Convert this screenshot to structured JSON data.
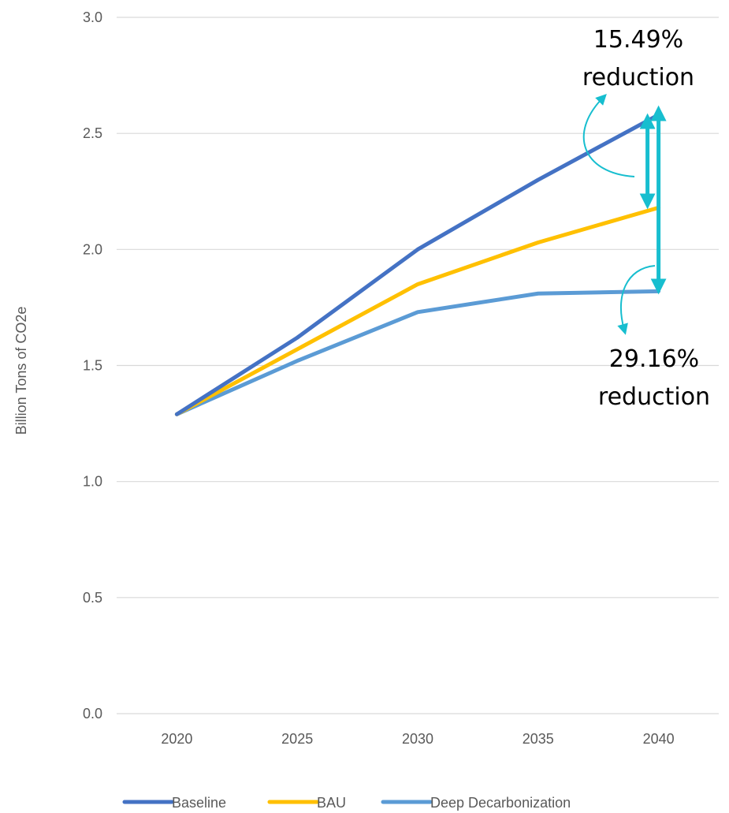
{
  "chart_data": {
    "type": "line",
    "title": "",
    "xlabel": "",
    "ylabel": "Billion Tons of CO2e",
    "categories": [
      "2020",
      "2025",
      "2030",
      "2035",
      "2040"
    ],
    "y_ticks": [
      "0.0",
      "0.5",
      "1.0",
      "1.5",
      "2.0",
      "2.5",
      "3.0"
    ],
    "ylim": [
      0,
      3.0
    ],
    "grid": "horizontal",
    "legend_position": "bottom",
    "series": [
      {
        "name": "Baseline",
        "color": "#4472C4",
        "values": [
          1.29,
          1.62,
          2.0,
          2.3,
          2.58
        ]
      },
      {
        "name": "BAU",
        "color": "#FFC000",
        "values": [
          1.29,
          1.57,
          1.85,
          2.03,
          2.18
        ]
      },
      {
        "name": "Deep Decarbonization",
        "color": "#5B9BD5",
        "values": [
          1.29,
          1.52,
          1.73,
          1.81,
          1.82
        ]
      }
    ],
    "annotations": [
      {
        "line1": "15.49%",
        "line2": "reduction",
        "from_series": "Baseline",
        "to_series": "BAU",
        "at": "2040"
      },
      {
        "line1": "29.16%",
        "line2": "reduction",
        "from_series": "Baseline",
        "to_series": "Deep Decarbonization",
        "at": "2040"
      }
    ],
    "annotation_color": "#17BECF"
  }
}
